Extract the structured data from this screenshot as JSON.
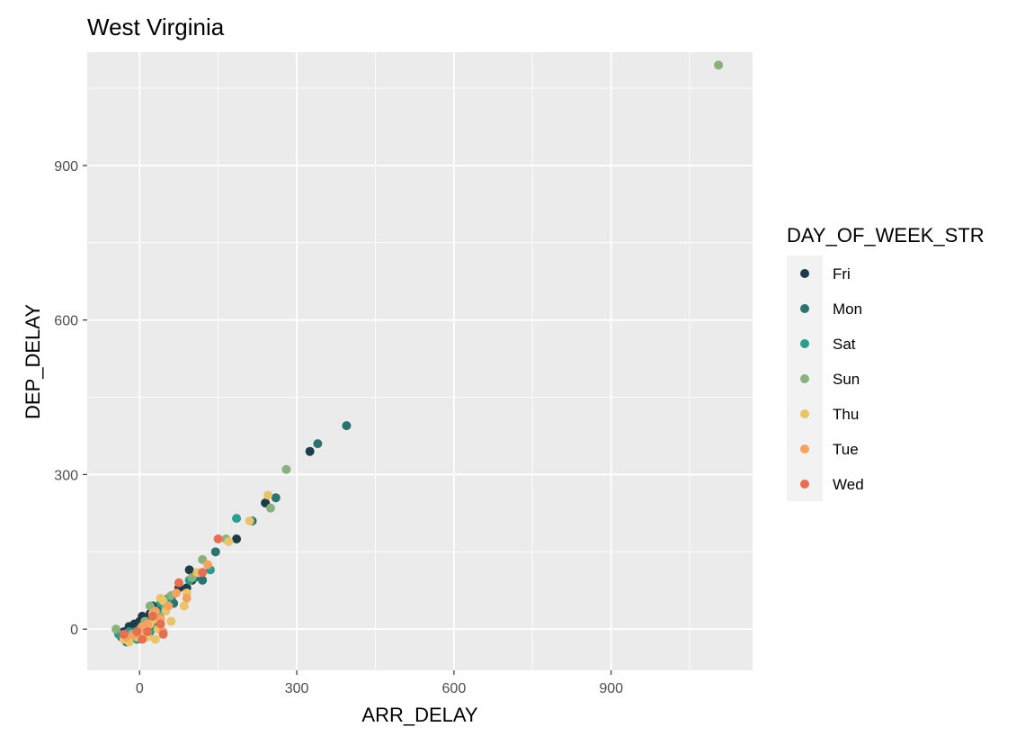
{
  "chart_data": {
    "type": "scatter",
    "title": "West Virginia",
    "xlabel": "ARR_DELAY",
    "ylabel": "DEP_DELAY",
    "xlim": [
      -100,
      1170
    ],
    "ylim": [
      -80,
      1120
    ],
    "x_ticks": [
      0,
      300,
      600,
      900
    ],
    "y_ticks": [
      0,
      300,
      600,
      900
    ],
    "x_tick_labels": [
      "0",
      "300",
      "600",
      "900"
    ],
    "y_tick_labels": [
      "0",
      "300",
      "600",
      "900"
    ],
    "grid": true,
    "background": "#EBEBEB",
    "legend": {
      "title": "DAY_OF_WEEK_STR",
      "placement": "right",
      "background": "#F2F2F2"
    },
    "series": [
      {
        "name": "Fri",
        "color": "#1D3C48",
        "points": [
          [
            -20,
            5
          ],
          [
            -10,
            10
          ],
          [
            0,
            15
          ],
          [
            5,
            25
          ],
          [
            10,
            20
          ],
          [
            20,
            30
          ],
          [
            25,
            45
          ],
          [
            40,
            40
          ],
          [
            50,
            55
          ],
          [
            60,
            60
          ],
          [
            75,
            80
          ],
          [
            90,
            80
          ],
          [
            95,
            115
          ],
          [
            100,
            95
          ],
          [
            185,
            175
          ],
          [
            240,
            245
          ],
          [
            325,
            345
          ],
          [
            -30,
            -5
          ],
          [
            10,
            -10
          ],
          [
            30,
            10
          ]
        ]
      },
      {
        "name": "Mon",
        "color": "#2A7370",
        "points": [
          [
            -35,
            -15
          ],
          [
            -25,
            -25
          ],
          [
            -10,
            -5
          ],
          [
            5,
            0
          ],
          [
            15,
            15
          ],
          [
            30,
            20
          ],
          [
            45,
            35
          ],
          [
            65,
            50
          ],
          [
            105,
            100
          ],
          [
            120,
            95
          ],
          [
            145,
            150
          ],
          [
            215,
            210
          ],
          [
            260,
            255
          ],
          [
            340,
            360
          ],
          [
            395,
            395
          ],
          [
            0,
            -15
          ],
          [
            20,
            5
          ]
        ]
      },
      {
        "name": "Sat",
        "color": "#2A9D8F",
        "points": [
          [
            -40,
            -10
          ],
          [
            -20,
            -5
          ],
          [
            0,
            0
          ],
          [
            10,
            5
          ],
          [
            25,
            15
          ],
          [
            35,
            30
          ],
          [
            40,
            50
          ],
          [
            55,
            60
          ],
          [
            95,
            95
          ],
          [
            135,
            115
          ],
          [
            185,
            215
          ],
          [
            -5,
            -20
          ],
          [
            20,
            -5
          ]
        ]
      },
      {
        "name": "Sun",
        "color": "#8AB17D",
        "points": [
          [
            -45,
            0
          ],
          [
            -15,
            -10
          ],
          [
            10,
            15
          ],
          [
            20,
            45
          ],
          [
            35,
            25
          ],
          [
            50,
            40
          ],
          [
            60,
            65
          ],
          [
            100,
            100
          ],
          [
            120,
            135
          ],
          [
            165,
            175
          ],
          [
            250,
            235
          ],
          [
            280,
            310
          ],
          [
            1105,
            1095
          ]
        ]
      },
      {
        "name": "Thu",
        "color": "#E9C46A",
        "points": [
          [
            -30,
            -20
          ],
          [
            -20,
            -25
          ],
          [
            -5,
            -15
          ],
          [
            10,
            -10
          ],
          [
            20,
            10
          ],
          [
            30,
            20
          ],
          [
            30,
            -20
          ],
          [
            35,
            0
          ],
          [
            40,
            60
          ],
          [
            45,
            55
          ],
          [
            50,
            35
          ],
          [
            60,
            15
          ],
          [
            85,
            45
          ],
          [
            90,
            70
          ],
          [
            110,
            110
          ],
          [
            170,
            170
          ],
          [
            210,
            210
          ],
          [
            245,
            260
          ],
          [
            25,
            30
          ],
          [
            15,
            -15
          ]
        ]
      },
      {
        "name": "Tue",
        "color": "#F4A261",
        "points": [
          [
            -25,
            -15
          ],
          [
            -10,
            -10
          ],
          [
            5,
            5
          ],
          [
            15,
            10
          ],
          [
            30,
            35
          ],
          [
            40,
            20
          ],
          [
            55,
            45
          ],
          [
            70,
            70
          ],
          [
            90,
            60
          ],
          [
            130,
            125
          ],
          [
            45,
            -5
          ]
        ]
      },
      {
        "name": "Wed",
        "color": "#E76F51",
        "points": [
          [
            -30,
            -10
          ],
          [
            -5,
            -5
          ],
          [
            15,
            -5
          ],
          [
            25,
            25
          ],
          [
            40,
            10
          ],
          [
            45,
            -10
          ],
          [
            75,
            90
          ],
          [
            120,
            110
          ],
          [
            150,
            175
          ],
          [
            5,
            -20
          ]
        ]
      }
    ]
  }
}
